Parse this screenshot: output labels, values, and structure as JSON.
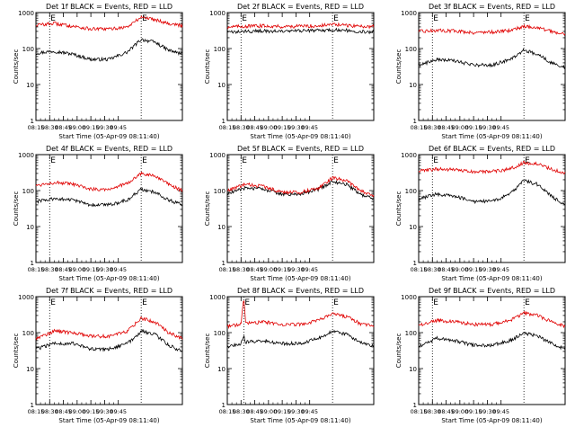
{
  "colors": {
    "events": "#000000",
    "lld": "#e00000",
    "axis": "#000000",
    "background": "#ffffff"
  },
  "chart_data": {
    "type": "line",
    "layout": {
      "rows": 3,
      "cols": 3
    },
    "xlabel": "Start Time (05-Apr-09 08:11:40)",
    "ylabel": "Counts/sec",
    "y_scale": "log",
    "ylim": [
      1,
      1000
    ],
    "yticks": [
      "1",
      "10",
      "100",
      "1000"
    ],
    "xlim_minutes": [
      495,
      655
    ],
    "xticks": [
      "08:15",
      "08:30",
      "08:45",
      "09:00",
      "09:15",
      "09:30",
      "09:45"
    ],
    "marker_label": "E",
    "panels": [
      {
        "title": "Det 1f BLACK = Events, RED = LLD",
        "markers": [
          510,
          610
        ],
        "x_minutes": [
          495,
          515,
          535,
          555,
          575,
          595,
          610,
          625,
          640,
          655
        ],
        "series": [
          {
            "name": "Events",
            "color": "#000000",
            "values": [
              75,
              85,
              70,
              50,
              50,
              80,
              180,
              150,
              90,
              70
            ]
          },
          {
            "name": "LLD",
            "color": "#e00000",
            "values": [
              450,
              500,
              420,
              350,
              350,
              400,
              750,
              650,
              500,
              430
            ]
          }
        ]
      },
      {
        "title": "Det 2f BLACK = Events, RED = LLD",
        "markers": [
          510,
          610
        ],
        "x_minutes": [
          495,
          515,
          535,
          555,
          575,
          595,
          610,
          625,
          640,
          655
        ],
        "series": [
          {
            "name": "Events",
            "color": "#000000",
            "values": [
              280,
              300,
              310,
              300,
              310,
              320,
              330,
              320,
              300,
              290
            ]
          },
          {
            "name": "LLD",
            "color": "#e00000",
            "values": [
              400,
              420,
              430,
              410,
              420,
              430,
              470,
              440,
              420,
              410
            ]
          }
        ]
      },
      {
        "title": "Det 3f BLACK = Events, RED = LLD",
        "markers": [
          510,
          610
        ],
        "x_minutes": [
          495,
          515,
          535,
          555,
          575,
          595,
          610,
          625,
          640,
          655
        ],
        "series": [
          {
            "name": "Events",
            "color": "#000000",
            "values": [
              35,
              50,
              45,
              35,
              35,
              50,
              90,
              70,
              40,
              30
            ]
          },
          {
            "name": "LLD",
            "color": "#e00000",
            "values": [
              300,
              320,
              310,
              280,
              290,
              320,
              420,
              380,
              300,
              260
            ]
          }
        ]
      },
      {
        "title": "Det 4f BLACK = Events, RED = LLD",
        "markers": [
          510,
          610
        ],
        "x_minutes": [
          495,
          515,
          535,
          555,
          575,
          595,
          610,
          625,
          640,
          655
        ],
        "series": [
          {
            "name": "Events",
            "color": "#000000",
            "values": [
              50,
              60,
              55,
              40,
              40,
              55,
              110,
              90,
              55,
              40
            ]
          },
          {
            "name": "LLD",
            "color": "#e00000",
            "values": [
              140,
              170,
              150,
              110,
              110,
              160,
              300,
              250,
              150,
              100
            ]
          }
        ]
      },
      {
        "title": "Det 5f BLACK = Events, RED = LLD",
        "markers": [
          510,
          610
        ],
        "x_minutes": [
          495,
          515,
          535,
          555,
          575,
          595,
          610,
          625,
          640,
          655
        ],
        "series": [
          {
            "name": "Events",
            "color": "#000000",
            "values": [
              80,
              120,
              110,
              80,
              80,
              110,
              180,
              150,
              80,
              60
            ]
          },
          {
            "name": "LLD",
            "color": "#e00000",
            "values": [
              100,
              150,
              130,
              90,
              90,
              120,
              230,
              190,
              100,
              70
            ]
          }
        ]
      },
      {
        "title": "Det 6f BLACK = Events, RED = LLD",
        "markers": [
          510,
          610
        ],
        "x_minutes": [
          495,
          515,
          535,
          555,
          575,
          595,
          610,
          625,
          640,
          655
        ],
        "series": [
          {
            "name": "Events",
            "color": "#000000",
            "values": [
              60,
              80,
              70,
              50,
              50,
              80,
              190,
              150,
              70,
              40
            ]
          },
          {
            "name": "LLD",
            "color": "#e00000",
            "values": [
              350,
              400,
              380,
              330,
              340,
              400,
              600,
              550,
              400,
              300
            ]
          }
        ]
      },
      {
        "title": "Det 7f BLACK = Events, RED = LLD",
        "markers": [
          510,
          610
        ],
        "x_minutes": [
          495,
          515,
          535,
          555,
          575,
          595,
          610,
          625,
          640,
          655
        ],
        "series": [
          {
            "name": "Events",
            "color": "#000000",
            "values": [
              35,
              50,
              50,
              35,
              35,
              50,
              110,
              90,
              45,
              30
            ]
          },
          {
            "name": "LLD",
            "color": "#e00000",
            "values": [
              70,
              110,
              100,
              80,
              80,
              110,
              250,
              200,
              100,
              70
            ]
          }
        ]
      },
      {
        "title": "Det 8f BLACK = Events, RED = LLD",
        "markers": [
          513,
          610
        ],
        "x_minutes": [
          495,
          510,
          513,
          515,
          535,
          555,
          575,
          595,
          610,
          625,
          640,
          655
        ],
        "series": [
          {
            "name": "Events",
            "color": "#000000",
            "values": [
              40,
              50,
              80,
              55,
              60,
              50,
              50,
              70,
              110,
              90,
              55,
              40
            ]
          },
          {
            "name": "LLD",
            "color": "#e00000",
            "values": [
              150,
              170,
              1000,
              180,
              200,
              170,
              170,
              220,
              330,
              280,
              180,
              150
            ]
          }
        ]
      },
      {
        "title": "Det 9f BLACK = Events, RED = LLD",
        "markers": [
          510,
          610
        ],
        "x_minutes": [
          495,
          515,
          535,
          555,
          575,
          595,
          610,
          625,
          640,
          655
        ],
        "series": [
          {
            "name": "Events",
            "color": "#000000",
            "values": [
              40,
              70,
              60,
              45,
              45,
              60,
              100,
              80,
              50,
              35
            ]
          },
          {
            "name": "LLD",
            "color": "#e00000",
            "values": [
              160,
              220,
              200,
              170,
              170,
              220,
              350,
              300,
              200,
              150
            ]
          }
        ]
      }
    ]
  }
}
